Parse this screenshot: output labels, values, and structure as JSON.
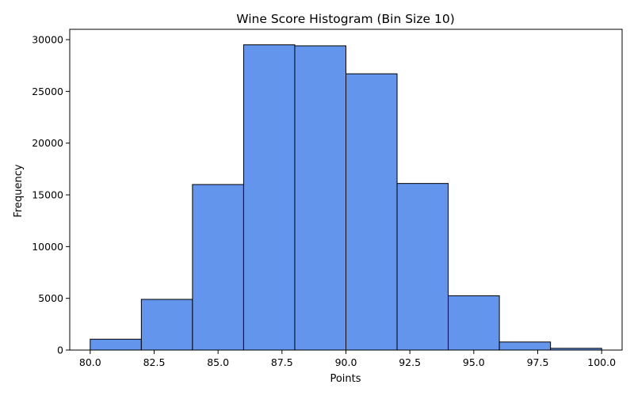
{
  "chart_data": {
    "type": "bar",
    "title": "Wine Score Histogram (Bin Size 10)",
    "xlabel": "Points",
    "ylabel": "Frequency",
    "bin_edges": [
      80,
      82,
      84,
      86,
      88,
      90,
      92,
      94,
      96,
      98,
      100
    ],
    "values": [
      1050,
      4900,
      16000,
      29500,
      29400,
      26700,
      16100,
      5250,
      780,
      170
    ],
    "xlim": [
      79.2,
      100.8
    ],
    "ylim": [
      0,
      31000
    ],
    "xticks": [
      80,
      82.5,
      85,
      87.5,
      90,
      92.5,
      95,
      97.5,
      100
    ],
    "xtick_labels": [
      "80.0",
      "82.5",
      "85.0",
      "87.5",
      "90.0",
      "92.5",
      "95.0",
      "97.5",
      "100.0"
    ],
    "yticks": [
      0,
      5000,
      10000,
      15000,
      20000,
      25000,
      30000
    ],
    "ytick_labels": [
      "0",
      "5000",
      "10000",
      "15000",
      "20000",
      "25000",
      "30000"
    ],
    "bar_color": "#6495ED",
    "edge_color": "#000000",
    "grid": false,
    "legend": "none"
  }
}
